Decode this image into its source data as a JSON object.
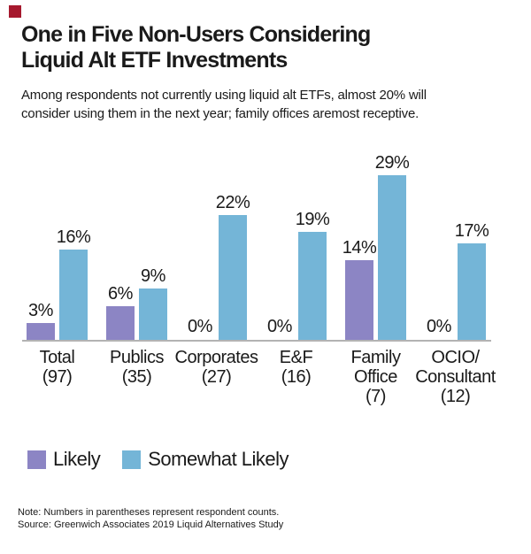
{
  "brand": {
    "logo_color": "#A6192E"
  },
  "header": {
    "title_line1": "One in Five Non-Users Considering",
    "title_line2": "Liquid Alt ETF Investments",
    "subtitle_line1": "Among respondents not currently using liquid alt ETFs, almost 20% will",
    "subtitle_line2": "consider using them in the next year; family offices aremost receptive."
  },
  "chart_data": {
    "type": "bar",
    "categories": [
      "Total",
      "Publics",
      "Corporates",
      "E&F",
      "Family Office",
      "OCIO/Consultant"
    ],
    "category_label_lines": [
      [
        "Total",
        "(97)"
      ],
      [
        "Publics",
        "(35)"
      ],
      [
        "Corporates",
        "(27)"
      ],
      [
        "E&F",
        "(16)"
      ],
      [
        "Family",
        "Office",
        "(7)"
      ],
      [
        "OCIO/",
        "Consultant",
        "(12)"
      ]
    ],
    "respondent_counts": [
      97,
      35,
      27,
      16,
      7,
      12
    ],
    "series": [
      {
        "name": "Likely",
        "color": "#8C85C4",
        "values": [
          3,
          6,
          0,
          0,
          14,
          0
        ]
      },
      {
        "name": "Somewhat Likely",
        "color": "#74B5D7",
        "values": [
          16,
          9,
          22,
          19,
          29,
          17
        ]
      }
    ],
    "value_label_suffix": "%",
    "title": "One in Five Non-Users Considering Liquid Alt ETF Investments",
    "xlabel": "",
    "ylabel": "",
    "ylim": [
      0,
      30
    ],
    "grid": false,
    "axis_color": "#b3b3b3",
    "legend_position": "bottom"
  },
  "legend": {
    "items": [
      {
        "label": "Likely",
        "color": "#8C85C4"
      },
      {
        "label": "Somewhat Likely",
        "color": "#74B5D7"
      }
    ]
  },
  "footer": {
    "note": "Note: Numbers in parentheses represent respondent counts.",
    "source": "Source: Greenwich Associates 2019 Liquid Alternatives Study"
  }
}
